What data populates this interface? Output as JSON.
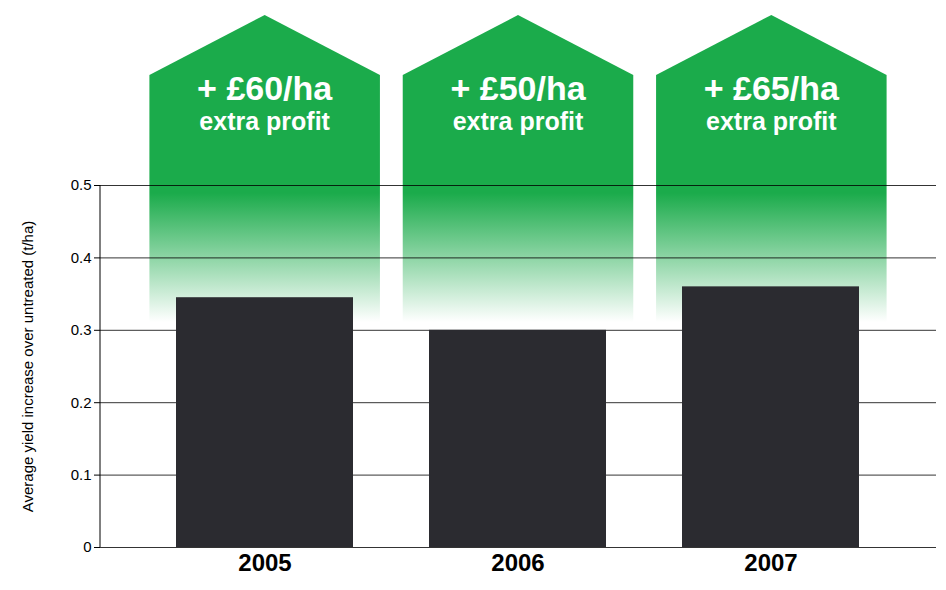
{
  "chart_data": {
    "type": "bar",
    "categories": [
      "2005",
      "2006",
      "2007"
    ],
    "values": [
      0.345,
      0.3,
      0.36
    ],
    "color": "#2b2b30",
    "ylabel": "Average yield increase over untreated (t/ha)",
    "ylim": [
      0,
      0.5
    ],
    "yticks": [
      0,
      0.1,
      0.2,
      0.3,
      0.4,
      0.5
    ],
    "grid": true,
    "annotations": [
      {
        "category": "2005",
        "text": [
          "+ £60/ha",
          "extra profit"
        ]
      },
      {
        "category": "2006",
        "text": [
          "+ £50/ha",
          "extra profit"
        ]
      },
      {
        "category": "2007",
        "text": [
          "+ £65/ha",
          "extra profit"
        ]
      }
    ]
  }
}
